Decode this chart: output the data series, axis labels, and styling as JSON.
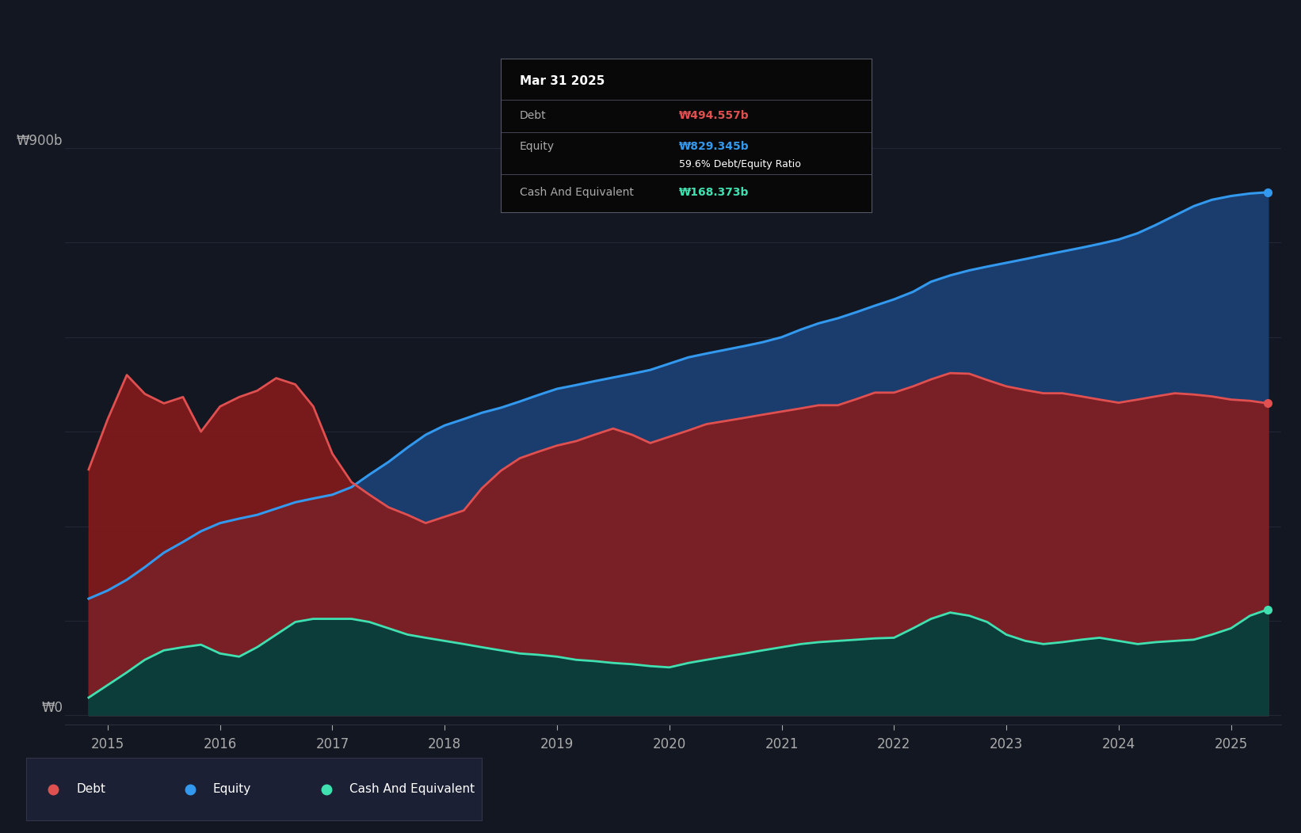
{
  "bg_color": "#131722",
  "chart_bg": "#16213a",
  "panel_bg": "#1a1f35",
  "grid_color": "#2a2e3d",
  "debt_color": "#e05050",
  "equity_color": "#3399ee",
  "cash_color": "#40e0b0",
  "debt_fill": "#8b1a1a",
  "equity_fill": "#1a3d6e",
  "cash_fill": "#0d3d3a",
  "tooltip_bg": "#080808",
  "tooltip_border": "#333344",
  "tooltip_title": "Mar 31 2025",
  "tooltip_debt_label": "Debt",
  "tooltip_debt_value": "₩494.557b",
  "tooltip_equity_label": "Equity",
  "tooltip_equity_value": "₩829.345b",
  "tooltip_ratio": "59.6% Debt/Equity Ratio",
  "tooltip_cash_label": "Cash And Equivalent",
  "tooltip_cash_value": "₩168.373b",
  "legend_debt": "Debt",
  "legend_equity": "Equity",
  "legend_cash": "Cash And Equivalent",
  "ylabel_900": "₩900b",
  "ylabel_0": "₩0",
  "xlabel_years": [
    2015,
    2016,
    2017,
    2018,
    2019,
    2020,
    2021,
    2022,
    2023,
    2024,
    2025
  ],
  "ymax": 950,
  "ymin": -15,
  "xmin": 2014.62,
  "xmax": 2025.45,
  "dates": [
    2014.83,
    2015.0,
    2015.17,
    2015.33,
    2015.5,
    2015.67,
    2015.83,
    2016.0,
    2016.17,
    2016.33,
    2016.5,
    2016.67,
    2016.83,
    2017.0,
    2017.17,
    2017.33,
    2017.5,
    2017.67,
    2017.83,
    2018.0,
    2018.17,
    2018.33,
    2018.5,
    2018.67,
    2018.83,
    2019.0,
    2019.17,
    2019.33,
    2019.5,
    2019.67,
    2019.83,
    2020.0,
    2020.17,
    2020.33,
    2020.5,
    2020.67,
    2020.83,
    2021.0,
    2021.17,
    2021.33,
    2021.5,
    2021.67,
    2021.83,
    2022.0,
    2022.17,
    2022.33,
    2022.5,
    2022.67,
    2022.83,
    2023.0,
    2023.17,
    2023.33,
    2023.5,
    2023.67,
    2023.83,
    2024.0,
    2024.17,
    2024.33,
    2024.5,
    2024.67,
    2024.83,
    2025.0,
    2025.17,
    2025.33
  ],
  "debt_values": [
    390,
    470,
    540,
    510,
    495,
    505,
    450,
    490,
    505,
    515,
    535,
    525,
    490,
    415,
    370,
    350,
    330,
    318,
    305,
    315,
    325,
    360,
    388,
    408,
    418,
    428,
    435,
    445,
    455,
    445,
    432,
    442,
    452,
    462,
    467,
    472,
    477,
    482,
    487,
    492,
    492,
    502,
    512,
    512,
    522,
    533,
    543,
    542,
    532,
    522,
    516,
    511,
    511,
    506,
    501,
    496,
    501,
    506,
    511,
    509,
    506,
    501,
    499,
    495
  ],
  "equity_values": [
    185,
    198,
    215,
    235,
    258,
    275,
    292,
    305,
    312,
    318,
    328,
    338,
    344,
    350,
    362,
    382,
    402,
    425,
    445,
    460,
    470,
    480,
    488,
    498,
    508,
    518,
    524,
    530,
    536,
    542,
    548,
    558,
    568,
    574,
    580,
    586,
    592,
    600,
    612,
    622,
    630,
    640,
    650,
    660,
    672,
    688,
    698,
    706,
    712,
    718,
    724,
    730,
    736,
    742,
    748,
    755,
    765,
    778,
    793,
    808,
    818,
    824,
    828,
    830
  ],
  "cash_values": [
    28,
    48,
    68,
    88,
    103,
    108,
    112,
    98,
    93,
    108,
    128,
    148,
    153,
    153,
    153,
    148,
    138,
    128,
    123,
    118,
    113,
    108,
    103,
    98,
    96,
    93,
    88,
    86,
    83,
    81,
    78,
    76,
    83,
    88,
    93,
    98,
    103,
    108,
    113,
    116,
    118,
    120,
    122,
    123,
    138,
    153,
    163,
    158,
    148,
    128,
    118,
    113,
    116,
    120,
    123,
    118,
    113,
    116,
    118,
    120,
    128,
    138,
    158,
    168
  ]
}
